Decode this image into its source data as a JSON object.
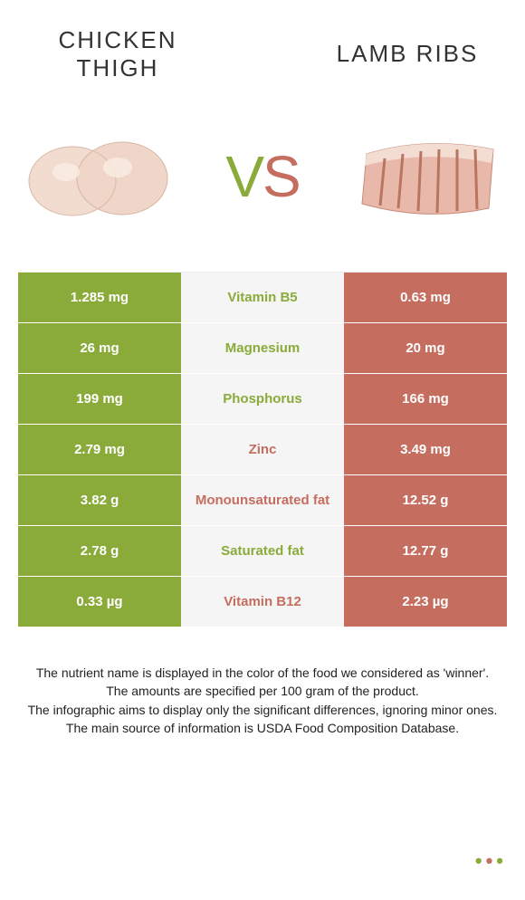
{
  "titles": {
    "left": "CHICKEN THIGH",
    "right": "LAMB RIBS"
  },
  "vs": {
    "v": "V",
    "s": "S"
  },
  "colors": {
    "left_bg": "#8aab3a",
    "right_bg": "#c56d5f",
    "left_text": "#8aab3a",
    "right_text": "#c56d5f",
    "mid_bg": "#f5f5f5"
  },
  "rows": [
    {
      "left": "1.285 mg",
      "label": "Vitamin B5",
      "right": "0.63 mg",
      "winner": "left"
    },
    {
      "left": "26 mg",
      "label": "Magnesium",
      "right": "20 mg",
      "winner": "left"
    },
    {
      "left": "199 mg",
      "label": "Phosphorus",
      "right": "166 mg",
      "winner": "left"
    },
    {
      "left": "2.79 mg",
      "label": "Zinc",
      "right": "3.49 mg",
      "winner": "right"
    },
    {
      "left": "3.82 g",
      "label": "Monounsaturated fat",
      "right": "12.52 g",
      "winner": "right"
    },
    {
      "left": "2.78 g",
      "label": "Saturated fat",
      "right": "12.77 g",
      "winner": "left"
    },
    {
      "left": "0.33 µg",
      "label": "Vitamin B12",
      "right": "2.23 µg",
      "winner": "right"
    }
  ],
  "footer": {
    "line1": "The nutrient name is displayed in the color of the food we considered as 'winner'.",
    "line2": "The amounts are specified per 100 gram of the product.",
    "line3": "The infographic aims to display only the significant differences, ignoring minor ones.",
    "line4": "The main source of information is USDA Food Composition Database."
  }
}
